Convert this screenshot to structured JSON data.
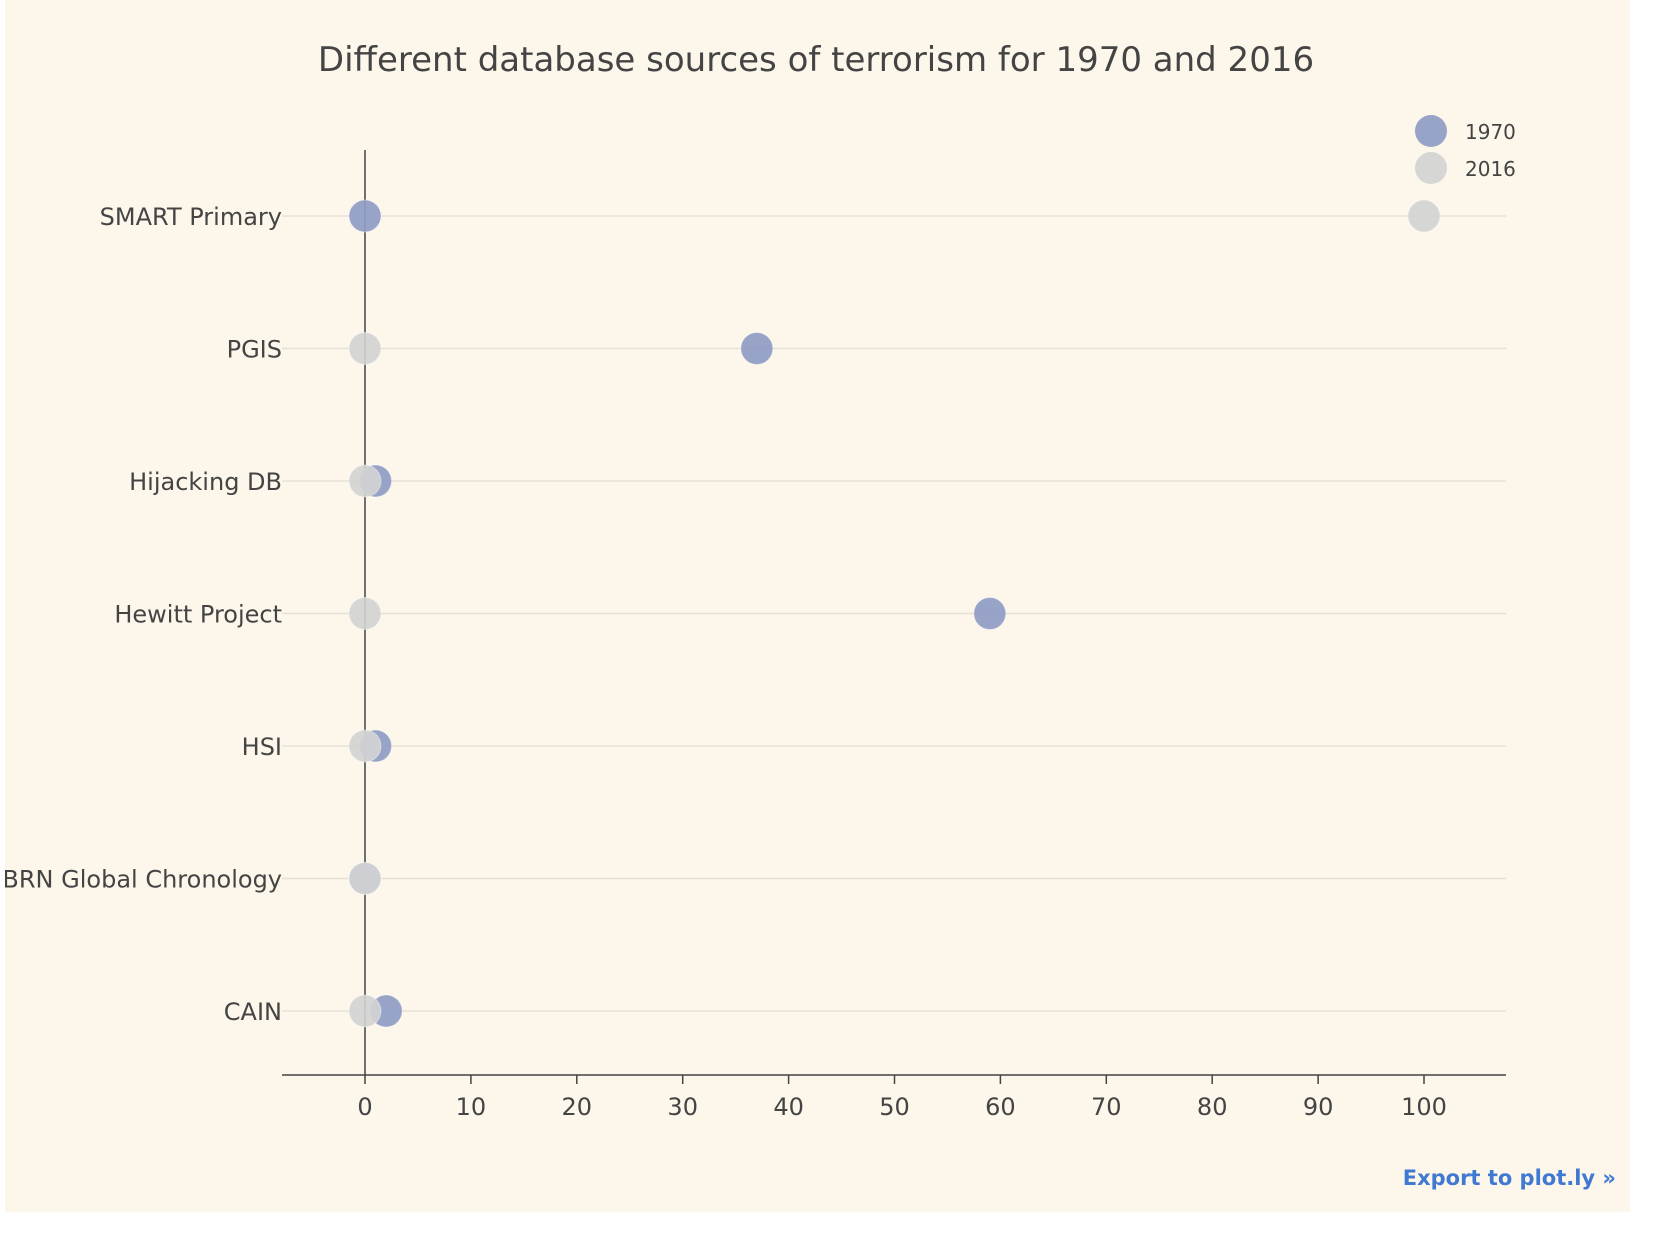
{
  "chart_data": {
    "type": "scatter",
    "title": "Different database sources of terrorism for 1970 and 2016",
    "xlabel": "",
    "ylabel": "",
    "xlim": [
      -7.5,
      108
    ],
    "x_ticks": [
      0,
      10,
      20,
      30,
      40,
      50,
      60,
      70,
      80,
      90,
      100
    ],
    "categories": [
      "SMART Primary",
      "PGIS",
      "Hijacking DB",
      "Hewitt Project",
      "HSI",
      "CBRN Global Chronology",
      "CAIN"
    ],
    "series": [
      {
        "name": "1970",
        "color": "#8f9bc4",
        "values": [
          0,
          37,
          1,
          59,
          1,
          0,
          2
        ]
      },
      {
        "name": "2016",
        "color": "#d3d3d3",
        "values": [
          100,
          0,
          0,
          0,
          0,
          0,
          0
        ]
      }
    ],
    "grid": true,
    "legend_position": "top-right"
  },
  "export_label": "Export to plot.ly »",
  "colors": {
    "background": "#fdf6ea",
    "gridline": "#e6e0d6",
    "axis": "#444444",
    "text": "#444444",
    "link": "#3f79d2"
  }
}
